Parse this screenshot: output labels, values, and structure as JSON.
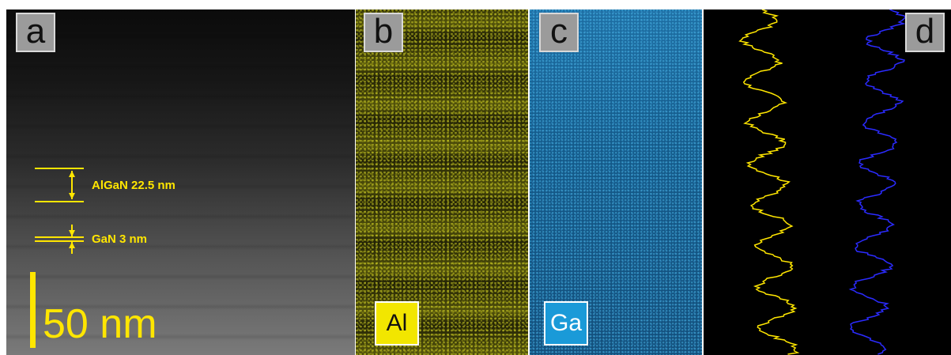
{
  "panels": {
    "a": {
      "letter": "a",
      "layer_thick": "AlGaN 22.5 nm",
      "layer_thin": "GaN 3 nm",
      "scale_bar": "50 nm"
    },
    "b": {
      "letter": "b",
      "element": "Al",
      "color": "#f2e600"
    },
    "c": {
      "letter": "c",
      "element": "Ga",
      "color": "#1a9ad8"
    },
    "d": {
      "letter": "d",
      "profile_colors": [
        "#ffe600",
        "#2b2bff"
      ]
    }
  }
}
